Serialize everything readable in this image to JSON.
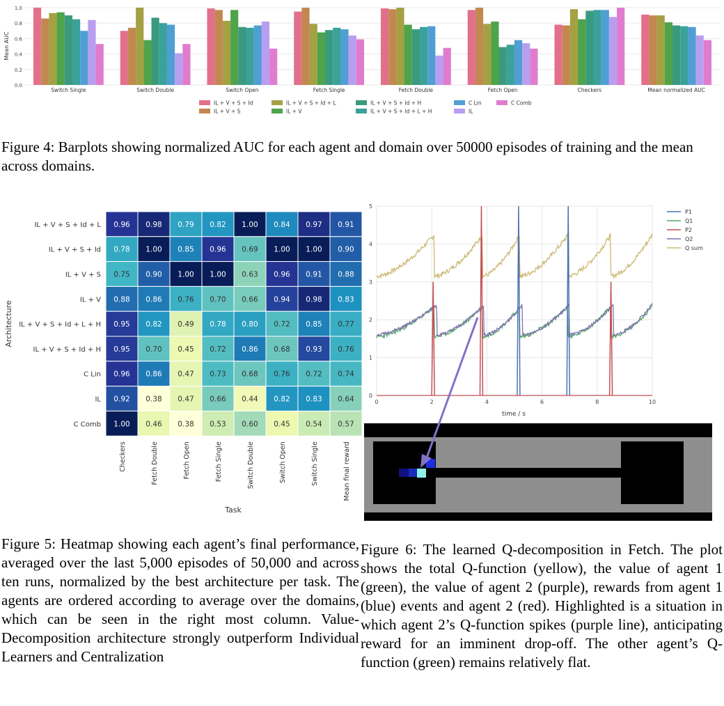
{
  "figure4": {
    "chart_data": {
      "type": "bar",
      "ylabel": "Mean AUC",
      "ylim": [
        0,
        1.0
      ],
      "yticks": [
        "0.0",
        "0.2",
        "0.4",
        "0.6",
        "0.8",
        "1.0"
      ],
      "grid": true,
      "legend_position": "bottom",
      "categories": [
        "Switch Single",
        "Switch Double",
        "Switch Open",
        "Fetch Single",
        "Fetch Double",
        "Fetch Open",
        "Checkers",
        "Mean normalized AUC"
      ],
      "series": [
        {
          "name": "IL + V + S + Id",
          "color": "#e3708a",
          "values": [
            1.0,
            0.7,
            0.99,
            0.95,
            0.99,
            0.97,
            0.78,
            0.91
          ]
        },
        {
          "name": "IL + V + S",
          "color": "#c28850",
          "values": [
            0.86,
            0.74,
            0.97,
            1.0,
            0.98,
            1.0,
            0.77,
            0.9
          ]
        },
        {
          "name": "IL + V + S + Id + L",
          "color": "#a3a142",
          "values": [
            0.93,
            1.0,
            0.83,
            0.79,
            1.0,
            0.79,
            0.98,
            0.9
          ]
        },
        {
          "name": "IL + V",
          "color": "#4fa34a",
          "values": [
            0.94,
            0.58,
            0.97,
            0.68,
            0.78,
            0.82,
            0.85,
            0.81
          ]
        },
        {
          "name": "IL + V + S + Id + H",
          "color": "#3a9a7e",
          "values": [
            0.9,
            0.87,
            0.75,
            0.71,
            0.72,
            0.49,
            0.96,
            0.77
          ]
        },
        {
          "name": "IL + V + S + Id + L + H",
          "color": "#3aa19b",
          "values": [
            0.85,
            0.8,
            0.74,
            0.74,
            0.75,
            0.52,
            0.97,
            0.76
          ]
        },
        {
          "name": "C Lin",
          "color": "#4f9fd4",
          "values": [
            0.7,
            0.78,
            0.77,
            0.72,
            0.76,
            0.58,
            0.97,
            0.75
          ]
        },
        {
          "name": "IL",
          "color": "#b89ef0",
          "values": [
            0.84,
            0.41,
            0.82,
            0.64,
            0.38,
            0.54,
            0.88,
            0.64
          ]
        },
        {
          "name": "C Comb",
          "color": "#e07cce",
          "values": [
            0.53,
            0.53,
            0.47,
            0.59,
            0.48,
            0.47,
            1.0,
            0.58
          ]
        }
      ]
    },
    "caption": "Figure 4: Barplots showing normalized AUC for each agent and domain over 50000 episodes of training and the mean across domains."
  },
  "figure5": {
    "chart_data": {
      "type": "heatmap",
      "xlabel": "Task",
      "ylabel": "Architecture",
      "columns": [
        "Checkers",
        "Fetch Double",
        "Fetch Open",
        "Fetch Single",
        "Switch Double",
        "Switch Open",
        "Switch Single",
        "Mean final reward"
      ],
      "rows": [
        "IL + V + S + Id + L",
        "IL + V + S + Id",
        "IL + V + S",
        "IL + V",
        "IL + V + S + Id + L + H",
        "IL + V + S + Id + H",
        "C Lin",
        "IL",
        "C Comb"
      ],
      "values": [
        [
          0.96,
          0.98,
          0.79,
          0.82,
          1.0,
          0.84,
          0.97,
          0.91
        ],
        [
          0.78,
          1.0,
          0.85,
          0.96,
          0.69,
          1.0,
          1.0,
          0.9
        ],
        [
          0.75,
          0.9,
          1.0,
          1.0,
          0.63,
          0.96,
          0.91,
          0.88
        ],
        [
          0.88,
          0.86,
          0.76,
          0.7,
          0.66,
          0.94,
          0.98,
          0.83
        ],
        [
          0.95,
          0.82,
          0.49,
          0.78,
          0.8,
          0.72,
          0.85,
          0.77
        ],
        [
          0.95,
          0.7,
          0.45,
          0.72,
          0.86,
          0.68,
          0.93,
          0.76
        ],
        [
          0.96,
          0.86,
          0.47,
          0.73,
          0.68,
          0.76,
          0.72,
          0.74
        ],
        [
          0.92,
          0.38,
          0.47,
          0.66,
          0.44,
          0.82,
          0.83,
          0.64
        ],
        [
          1.0,
          0.46,
          0.38,
          0.53,
          0.6,
          0.45,
          0.54,
          0.57
        ]
      ],
      "colormap": "YlGnBu"
    },
    "caption": "Figure 5: Heatmap showing each agent’s final performance, averaged over the last 5,000 episodes of 50,000 and across ten runs, normalized by the best architecture per task. The agents are ordered according to average over the domains, which can be seen in the right most column. Value-Decomposition architecture strongly outperform Individual Learners and Centralization"
  },
  "figure6": {
    "chart_data": {
      "type": "line",
      "xlabel": "time / s",
      "xlim": [
        0,
        10
      ],
      "ylim": [
        0,
        5
      ],
      "xticks": [
        "0",
        "2",
        "4",
        "6",
        "8",
        "10"
      ],
      "yticks": [
        "0",
        "1",
        "2",
        "3",
        "4",
        "5"
      ],
      "legend_position": "top-right",
      "series": [
        {
          "name": "P1",
          "color": "#4c72b0",
          "spike_times": [
            5.15,
            6.95
          ]
        },
        {
          "name": "Q1",
          "color": "#55a868",
          "values_range": [
            1.5,
            2.4
          ]
        },
        {
          "name": "P2",
          "color": "#c44e52",
          "spike_times": [
            2.05,
            3.8,
            8.5
          ]
        },
        {
          "name": "Q2",
          "color": "#8172b2",
          "values_range": [
            1.5,
            2.5
          ]
        },
        {
          "name": "Q sum",
          "color": "#ccb974",
          "values_range": [
            3.1,
            4.3
          ]
        }
      ]
    },
    "caption": "Figure 6: The learned Q-decomposition in Fetch. The plot shows the total Q-function (yellow), the value of agent 1 (green), the value of agent 2 (purple), rewards from agent 1 (blue) events and agent 2 (red). Highlighted is a situation in which agent 2’s Q-function spikes (purple line), anticipating reward for an imminent drop-off. The other agent’s Q-function (green) remains relatively flat."
  }
}
